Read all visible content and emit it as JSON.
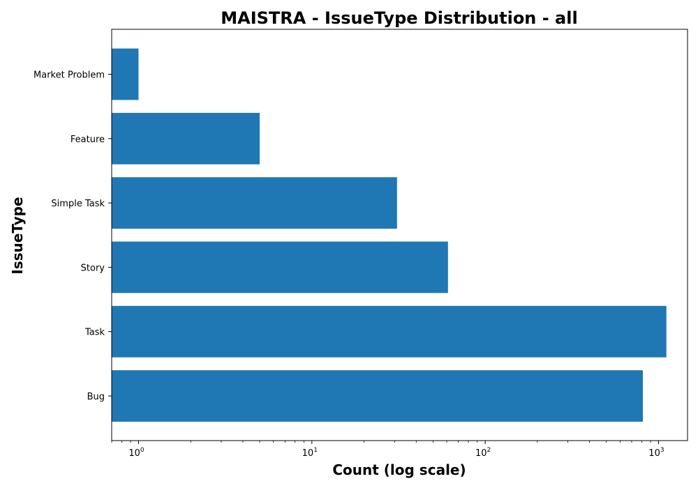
{
  "chart_data": {
    "type": "bar",
    "orientation": "horizontal",
    "title": "MAISTRA - IssueType Distribution - all",
    "xlabel": "Count (log scale)",
    "ylabel": "IssueType",
    "x_scale": "log",
    "xlim": [
      0.7,
      1470
    ],
    "categories": [
      "Bug",
      "Task",
      "Story",
      "Simple Task",
      "Feature",
      "Market Problem"
    ],
    "values": [
      812,
      1110,
      61,
      31,
      5,
      1
    ],
    "x_ticks": [
      {
        "base": "10",
        "exp": "0",
        "value": 1
      },
      {
        "base": "10",
        "exp": "1",
        "value": 10
      },
      {
        "base": "10",
        "exp": "2",
        "value": 100
      },
      {
        "base": "10",
        "exp": "3",
        "value": 1000
      }
    ],
    "grid": false,
    "bar_color": "#1f77b4"
  }
}
